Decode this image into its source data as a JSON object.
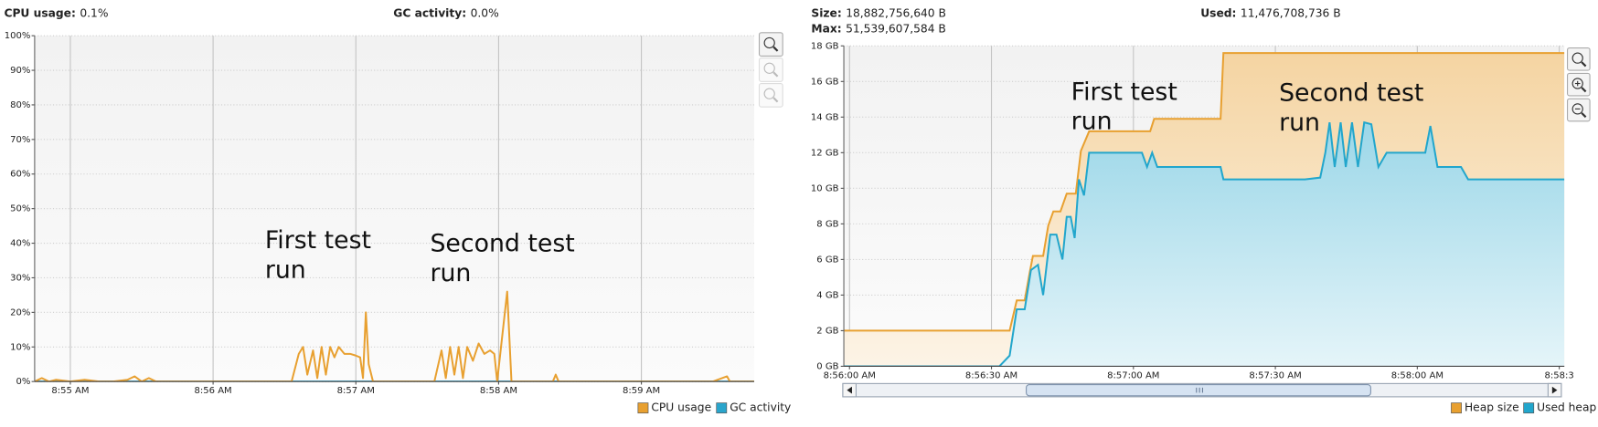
{
  "chart_data": [
    {
      "type": "line",
      "stats": [
        {
          "label": "CPU usage:",
          "value": "0.1%"
        },
        {
          "label": "GC activity:",
          "value": "0.0%"
        }
      ],
      "annotations": [
        "First test run",
        "Second test run"
      ],
      "xlim": [
        54.75,
        59.79
      ],
      "xticks": [
        {
          "value": 55,
          "label": "8:55 AM"
        },
        {
          "value": 56,
          "label": "8:56 AM"
        },
        {
          "value": 57,
          "label": "8:57 AM"
        },
        {
          "value": 58,
          "label": "8:58 AM"
        },
        {
          "value": 59,
          "label": "8:59 AM"
        }
      ],
      "ylim": [
        0,
        100
      ],
      "yticks": [
        {
          "value": 0,
          "label": "0%"
        },
        {
          "value": 10,
          "label": "10%"
        },
        {
          "value": 20,
          "label": "20%"
        },
        {
          "value": 30,
          "label": "30%"
        },
        {
          "value": 40,
          "label": "40%"
        },
        {
          "value": 50,
          "label": "50%"
        },
        {
          "value": 60,
          "label": "60%"
        },
        {
          "value": 70,
          "label": "70%"
        },
        {
          "value": 80,
          "label": "80%"
        },
        {
          "value": 90,
          "label": "90%"
        },
        {
          "value": 100,
          "label": "100%"
        }
      ],
      "grid": true,
      "series": [
        {
          "name": "CPU usage",
          "color": "#e8a030",
          "x": [
            54.75,
            54.8,
            54.85,
            54.9,
            55,
            55.1,
            55.2,
            55.3,
            55.4,
            55.45,
            55.5,
            55.55,
            55.6,
            55.7,
            56,
            56.3,
            56.55,
            56.6,
            56.63,
            56.66,
            56.7,
            56.73,
            56.76,
            56.79,
            56.82,
            56.85,
            56.88,
            56.92,
            56.96,
            57.0,
            57.03,
            57.05,
            57.07,
            57.09,
            57.12,
            57.3,
            57.55,
            57.6,
            57.63,
            57.66,
            57.69,
            57.72,
            57.75,
            57.78,
            57.82,
            57.86,
            57.9,
            57.94,
            57.97,
            57.99,
            58.06,
            58.09,
            58.2,
            58.38,
            58.4,
            58.42,
            58.7,
            59.0,
            59.5,
            59.6,
            59.62,
            59.79
          ],
          "values": [
            0,
            1,
            0,
            0.5,
            0,
            0.5,
            0,
            0,
            0.5,
            1.5,
            0,
            1,
            0,
            0,
            0,
            0,
            0,
            8,
            10,
            2,
            9,
            1,
            10,
            2,
            10,
            7,
            10,
            8,
            8,
            7.5,
            7,
            1,
            20,
            5,
            0,
            0,
            0,
            9,
            1,
            10,
            2,
            10,
            1,
            10,
            6,
            11,
            8,
            9,
            8,
            0,
            26,
            0,
            0,
            0,
            2,
            0,
            0,
            0,
            0,
            1.5,
            0,
            0
          ]
        },
        {
          "name": "GC activity",
          "color": "#2aa5cc",
          "x": [
            54.75,
            59.79
          ],
          "values": [
            0,
            0
          ]
        }
      ]
    },
    {
      "type": "area",
      "stats": [
        {
          "label": "Size:",
          "value": "18,882,756,640 B"
        },
        {
          "label": "Max:",
          "value": "51,539,607,584 B"
        },
        {
          "label": "Used:",
          "value": "11,476,708,736 B"
        }
      ],
      "annotations": [
        "First test run",
        "Second test run"
      ],
      "xlim": [
        55.98,
        58.518
      ],
      "xticks": [
        {
          "value": 56,
          "label": "8:56:00 AM"
        },
        {
          "value": 56.5,
          "label": "8:56:30 AM"
        },
        {
          "value": 57,
          "label": "8:57:00 AM"
        },
        {
          "value": 57.5,
          "label": "8:57:30 AM"
        },
        {
          "value": 58,
          "label": "8:58:00 AM"
        },
        {
          "value": 58.5,
          "label": "8:58:3"
        }
      ],
      "ylim": [
        0,
        18
      ],
      "yticks": [
        {
          "value": 0,
          "label": "0 GB"
        },
        {
          "value": 2,
          "label": "2 GB"
        },
        {
          "value": 4,
          "label": "4 GB"
        },
        {
          "value": 6,
          "label": "6 GB"
        },
        {
          "value": 8,
          "label": "8 GB"
        },
        {
          "value": 10,
          "label": "10 GB"
        },
        {
          "value": 12,
          "label": "12 GB"
        },
        {
          "value": 14,
          "label": "14 GB"
        },
        {
          "value": 16,
          "label": "16 GB"
        },
        {
          "value": 18,
          "label": "18 GB"
        }
      ],
      "grid": true,
      "series": [
        {
          "name": "Heap size",
          "color": "#e8a030",
          "x": [
            55.98,
            56.564,
            56.589,
            56.617,
            56.635,
            56.646,
            56.682,
            56.7,
            56.718,
            56.743,
            56.765,
            56.797,
            56.815,
            56.844,
            57.059,
            57.073,
            57.307,
            57.317,
            58.518
          ],
          "values": [
            2.0,
            2.0,
            3.7,
            3.7,
            5.3,
            6.2,
            6.2,
            7.9,
            8.7,
            8.7,
            9.7,
            9.7,
            12.1,
            13.2,
            13.2,
            13.9,
            13.9,
            17.6,
            17.6
          ]
        },
        {
          "name": "Used heap",
          "color": "#22a6cc",
          "x": [
            55.98,
            56.528,
            56.564,
            56.589,
            56.617,
            56.639,
            56.664,
            56.682,
            56.707,
            56.729,
            56.75,
            56.765,
            56.779,
            56.793,
            56.808,
            56.826,
            56.844,
            57.03,
            57.048,
            57.066,
            57.084,
            57.307,
            57.317,
            57.604,
            57.658,
            57.676,
            57.691,
            57.709,
            57.73,
            57.748,
            57.77,
            57.791,
            57.813,
            57.838,
            57.863,
            57.892,
            58.028,
            58.046,
            58.071,
            58.154,
            58.179,
            58.518
          ],
          "values": [
            0,
            0,
            0.6,
            3.2,
            3.2,
            5.4,
            5.7,
            4.0,
            7.4,
            7.4,
            6.0,
            8.4,
            8.4,
            7.2,
            10.5,
            9.6,
            12.0,
            12.0,
            11.2,
            12.0,
            11.2,
            11.2,
            10.5,
            10.5,
            10.6,
            12.0,
            13.7,
            11.2,
            13.7,
            11.2,
            13.7,
            11.2,
            13.7,
            13.6,
            11.2,
            12.0,
            12.0,
            13.5,
            11.2,
            11.2,
            10.5,
            10.5
          ]
        }
      ]
    }
  ]
}
